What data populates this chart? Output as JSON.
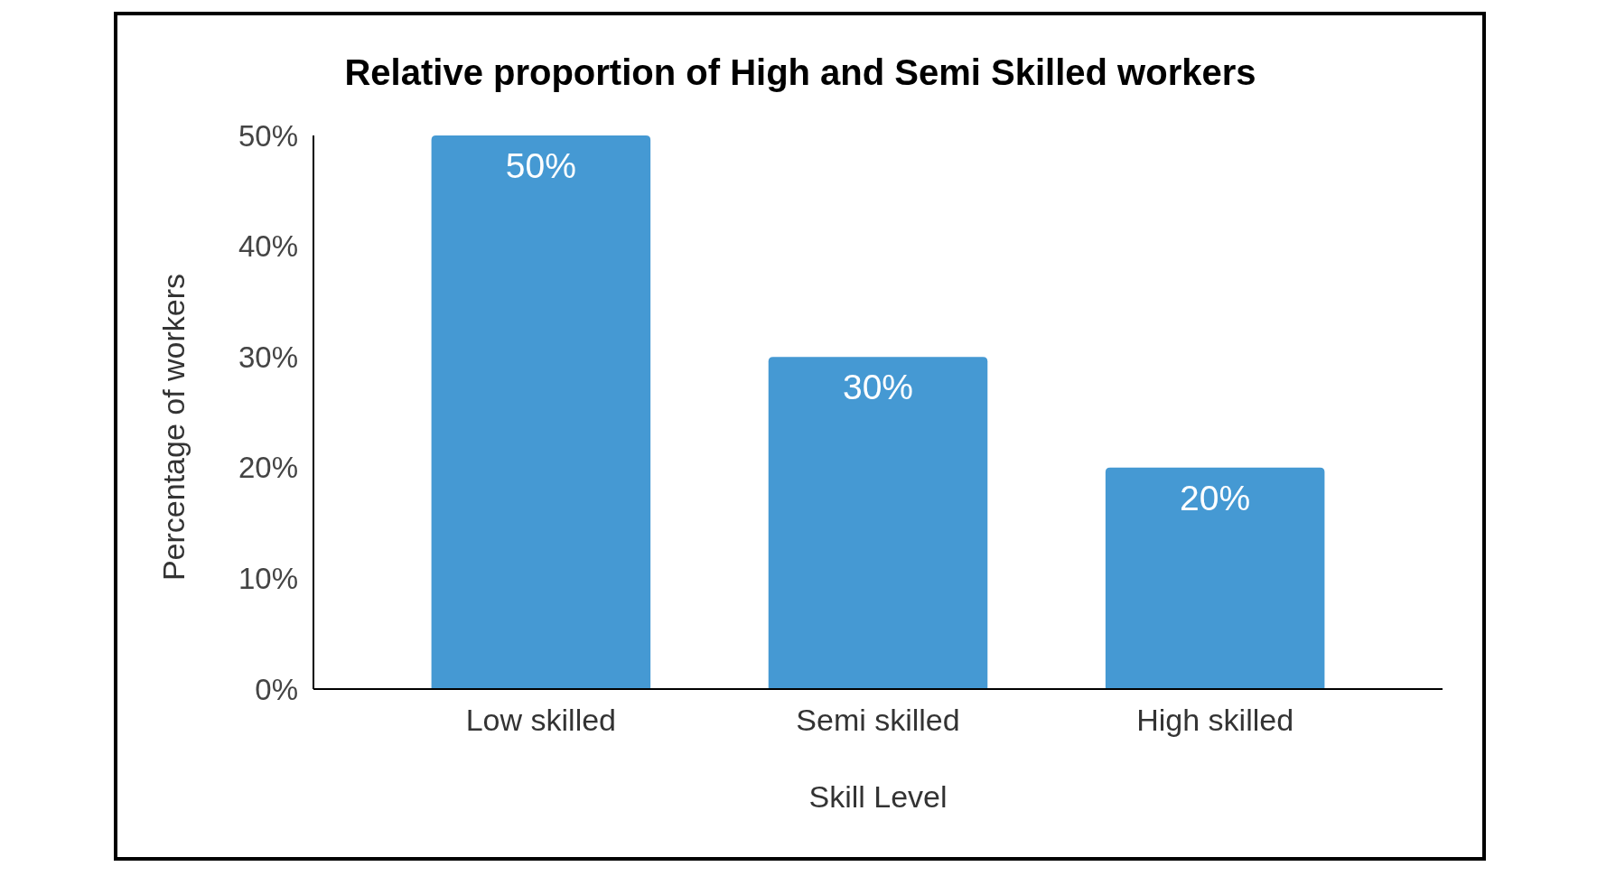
{
  "chart_data": {
    "type": "bar",
    "title": "Relative proportion of High and Semi Skilled workers",
    "xlabel": "Skill Level",
    "ylabel": "Percentage of workers",
    "categories": [
      "Low skilled",
      "Semi skilled",
      "High skilled"
    ],
    "values": [
      50,
      30,
      20
    ],
    "color": "#4599d3",
    "value_labels": [
      "50%",
      "30%",
      "20%"
    ],
    "ylim": [
      0,
      50
    ],
    "yticks": [
      {
        "value": 0,
        "label": "0%"
      },
      {
        "value": 10,
        "label": "10%"
      },
      {
        "value": 20,
        "label": "20%"
      },
      {
        "value": 30,
        "label": "30%"
      },
      {
        "value": 40,
        "label": "40%"
      },
      {
        "value": 50,
        "label": "50%"
      }
    ]
  }
}
